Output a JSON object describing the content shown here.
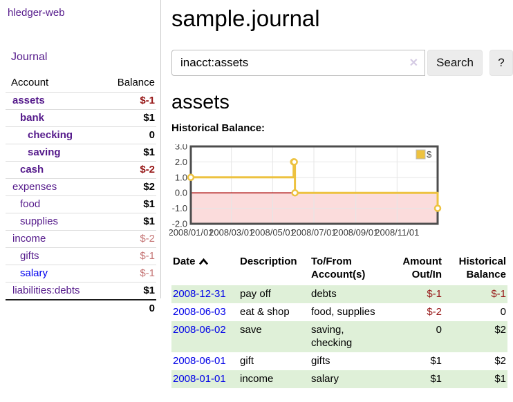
{
  "app": {
    "brand": "hledger-web",
    "nav_journal": "Journal"
  },
  "sidebar": {
    "account_header": "Account",
    "balance_header": "Balance",
    "accounts": [
      {
        "name": "assets",
        "depth": 1,
        "balance": "$-1",
        "bold": true,
        "negative": "strong",
        "visited": true
      },
      {
        "name": "bank",
        "depth": 2,
        "balance": "$1",
        "bold": true,
        "negative": "none",
        "visited": true
      },
      {
        "name": "checking",
        "depth": 3,
        "balance": "0",
        "bold": true,
        "negative": "none",
        "visited": true
      },
      {
        "name": "saving",
        "depth": 3,
        "balance": "$1",
        "bold": true,
        "negative": "none",
        "visited": true
      },
      {
        "name": "cash",
        "depth": 2,
        "balance": "$-2",
        "bold": true,
        "negative": "strong",
        "visited": true
      },
      {
        "name": "expenses",
        "depth": 1,
        "balance": "$2",
        "bold": false,
        "negative": "none",
        "visited": true
      },
      {
        "name": "food",
        "depth": 2,
        "balance": "$1",
        "bold": false,
        "negative": "none",
        "visited": true
      },
      {
        "name": "supplies",
        "depth": 2,
        "balance": "$1",
        "bold": false,
        "negative": "none",
        "visited": true
      },
      {
        "name": "income",
        "depth": 1,
        "balance": "$-2",
        "bold": false,
        "negative": "soft",
        "visited": true
      },
      {
        "name": "gifts",
        "depth": 2,
        "balance": "$-1",
        "bold": false,
        "negative": "soft",
        "visited": true
      },
      {
        "name": "salary",
        "depth": 2,
        "balance": "$-1",
        "bold": false,
        "negative": "soft",
        "visited": false
      },
      {
        "name": "liabilities:debts",
        "depth": 1,
        "balance": "$1",
        "bold": false,
        "negative": "none",
        "visited": true
      }
    ],
    "total": "0"
  },
  "header": {
    "title": "sample.journal"
  },
  "search": {
    "value": "inacct:assets",
    "clear_icon": "✕",
    "button_label": "Search",
    "help_label": "?"
  },
  "account_page": {
    "heading": "assets",
    "chart_label": "Historical Balance:"
  },
  "chart_data": {
    "type": "line",
    "step": true,
    "series": [
      {
        "name": "$",
        "color": "#EDC240",
        "points": [
          {
            "date": "2008-01-01",
            "value": 1
          },
          {
            "date": "2008-06-01",
            "value": 2
          },
          {
            "date": "2008-06-02",
            "value": 2
          },
          {
            "date": "2008-06-03",
            "value": 0
          },
          {
            "date": "2008-12-31",
            "value": -1
          }
        ]
      }
    ],
    "x_range": [
      "2008-01-01",
      "2008-12-31"
    ],
    "x_ticks": [
      "2008/01/01",
      "2008/03/01",
      "2008/05/01",
      "2008/07/01",
      "2008/09/01",
      "2008/11/01"
    ],
    "y_ticks": [
      "3.0",
      "2.0",
      "1.0",
      "0.0",
      "-1.0",
      "-2.0"
    ],
    "ylim": [
      -2,
      3
    ],
    "grid": true,
    "legend_position": "top-right",
    "negative_region_color": "#fbdcdc",
    "zero_line_color": "#a80000",
    "grid_color": "#e6e6e6",
    "border_color": "#4d4d4d",
    "tick_label_color": "#3a3a3a"
  },
  "register": {
    "columns": {
      "date": "Date",
      "description": "Description",
      "accounts_line1": "To/From",
      "accounts_line2": "Account(s)",
      "amount_line1": "Amount",
      "amount_line2": "Out/In",
      "balance_line1": "Historical",
      "balance_line2": "Balance"
    },
    "rows": [
      {
        "date": "2008-12-31",
        "description": "pay off",
        "accounts": "debts",
        "amount": "$-1",
        "amount_negative": true,
        "balance": "$-1",
        "balance_negative": true,
        "striped": true
      },
      {
        "date": "2008-06-03",
        "description": "eat & shop",
        "accounts": "food, supplies",
        "amount": "$-2",
        "amount_negative": true,
        "balance": "0",
        "balance_negative": false,
        "striped": false
      },
      {
        "date": "2008-06-02",
        "description": "save",
        "accounts": "saving, checking",
        "amount": "0",
        "amount_negative": false,
        "balance": "$2",
        "balance_negative": false,
        "striped": true
      },
      {
        "date": "2008-06-01",
        "description": "gift",
        "accounts": "gifts",
        "amount": "$1",
        "amount_negative": false,
        "balance": "$2",
        "balance_negative": false,
        "striped": false
      },
      {
        "date": "2008-01-01",
        "description": "income",
        "accounts": "salary",
        "amount": "$1",
        "amount_negative": false,
        "balance": "$1",
        "balance_negative": false,
        "striped": true
      }
    ]
  }
}
